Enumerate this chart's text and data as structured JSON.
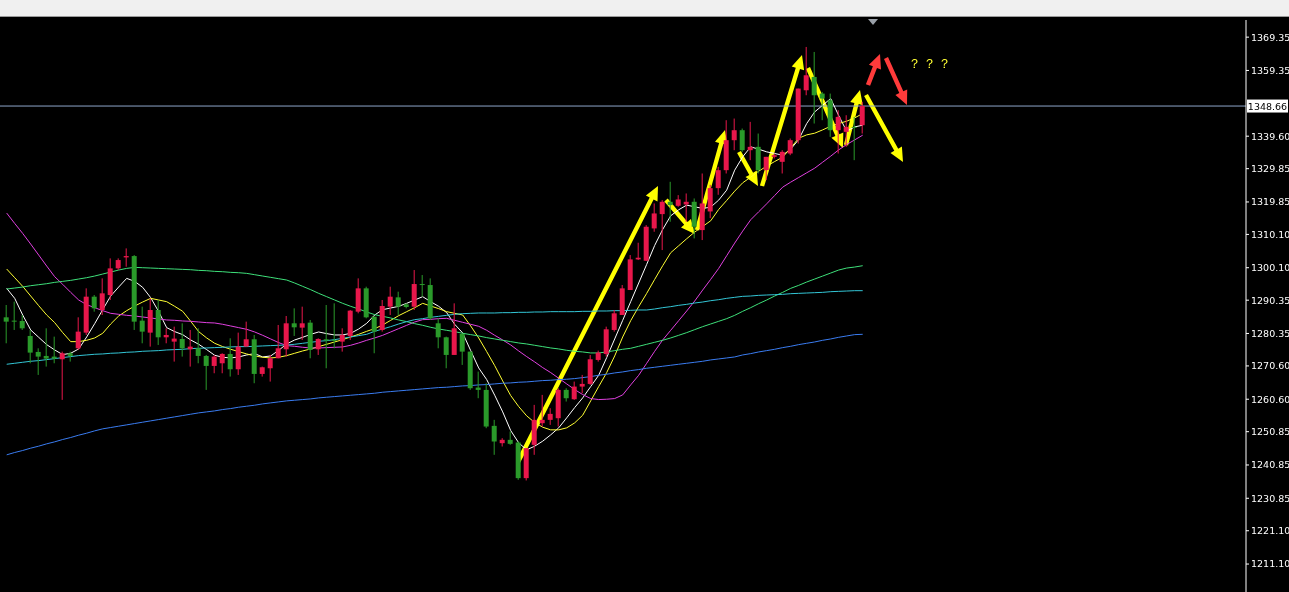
{
  "chart_data": {
    "type": "candlestick",
    "categories": [
      null,
      null,
      null,
      null,
      null,
      null,
      null,
      null,
      null,
      null,
      null,
      null,
      null,
      null,
      null,
      null,
      null,
      null,
      null,
      null,
      null,
      null,
      null,
      null,
      null,
      null,
      null,
      null,
      null,
      null,
      null,
      null,
      null,
      null,
      null,
      null,
      null,
      null,
      null,
      null,
      null,
      null,
      null,
      null,
      null,
      null,
      null,
      null,
      null,
      null,
      null,
      null,
      null,
      null,
      null,
      null,
      null,
      null,
      null,
      null,
      null,
      null,
      null,
      null,
      null,
      null,
      null,
      null,
      null,
      null,
      null,
      null,
      null,
      null,
      null,
      null,
      null,
      null,
      null,
      null,
      null,
      null,
      null,
      null,
      null,
      null,
      null,
      null,
      null,
      null,
      null,
      null,
      null,
      null,
      null,
      null,
      null,
      null,
      null,
      null,
      null,
      null,
      null,
      null,
      null,
      null,
      null,
      null
    ],
    "ohlc": [
      [
        1285.2,
        1288.9,
        1277.4,
        1283.9
      ],
      [
        1284.2,
        1289.9,
        1281.4,
        1284.0
      ],
      [
        1284.1,
        1285.9,
        1281.4,
        1281.9
      ],
      [
        1279.6,
        1281.4,
        1271.4,
        1274.6
      ],
      [
        1274.8,
        1275.9,
        1267.9,
        1273.4
      ],
      [
        1273.6,
        1281.9,
        1270.4,
        1272.8
      ],
      [
        1273.4,
        1279.4,
        1271.4,
        1272.8
      ],
      [
        1272.6,
        1274.9,
        1260.4,
        1274.4
      ],
      [
        1274.4,
        1274.9,
        1271.9,
        1273.6
      ],
      [
        1275.9,
        1285.2,
        1275.4,
        1280.9
      ],
      [
        1280.6,
        1293.9,
        1279.9,
        1291.4
      ],
      [
        1291.4,
        1291.9,
        1286.9,
        1287.9
      ],
      [
        1287.4,
        1296.9,
        1285.9,
        1292.4
      ],
      [
        1291.9,
        1302.9,
        1290.4,
        1299.9
      ],
      [
        1299.9,
        1302.9,
        1299.4,
        1302.4
      ],
      [
        1303.2,
        1305.9,
        1300.4,
        1303.6
      ],
      [
        1303.6,
        1303.9,
        1281.4,
        1283.9
      ],
      [
        1284.2,
        1288.4,
        1277.4,
        1280.9
      ],
      [
        1280.6,
        1290.9,
        1276.4,
        1287.4
      ],
      [
        1287.4,
        1290.4,
        1276.9,
        1279.2
      ],
      [
        1279.2,
        1281.9,
        1277.4,
        1279.9
      ],
      [
        1277.9,
        1282.4,
        1271.9,
        1278.8
      ],
      [
        1278.7,
        1283.4,
        1273.4,
        1275.9
      ],
      [
        1275.6,
        1281.4,
        1270.4,
        1276.4
      ],
      [
        1275.9,
        1281.9,
        1271.4,
        1273.6
      ],
      [
        1273.6,
        1273.9,
        1263.4,
        1270.6
      ],
      [
        1270.6,
        1273.9,
        1268.4,
        1273.4
      ],
      [
        1271.4,
        1274.4,
        1268.4,
        1274.2
      ],
      [
        1274.2,
        1278.9,
        1267.4,
        1269.6
      ],
      [
        1269.6,
        1280.6,
        1267.9,
        1276.4
      ],
      [
        1276.4,
        1283.9,
        1276.4,
        1278.6
      ],
      [
        1278.6,
        1279.9,
        1265.4,
        1268.2
      ],
      [
        1268.2,
        1270.4,
        1267.4,
        1270.2
      ],
      [
        1269.9,
        1273.9,
        1265.9,
        1272.9
      ],
      [
        1272.9,
        1282.9,
        1272.9,
        1275.9
      ],
      [
        1275.6,
        1285.6,
        1273.4,
        1283.4
      ],
      [
        1283.4,
        1287.9,
        1279.6,
        1282.2
      ],
      [
        1282.1,
        1288.4,
        1278.4,
        1283.4
      ],
      [
        1283.6,
        1284.4,
        1272.9,
        1275.4
      ],
      [
        1275.6,
        1278.9,
        1273.9,
        1278.7
      ],
      [
        1278.6,
        1288.9,
        1269.9,
        1278.2
      ],
      [
        1278.4,
        1289.4,
        1275.9,
        1278.1
      ],
      [
        1277.9,
        1281.9,
        1274.9,
        1279.9
      ],
      [
        1279.6,
        1287.4,
        1278.4,
        1287.2
      ],
      [
        1286.9,
        1296.9,
        1286.4,
        1293.9
      ],
      [
        1293.9,
        1294.4,
        1284.9,
        1285.2
      ],
      [
        1285.4,
        1285.4,
        1274.4,
        1280.9
      ],
      [
        1281.4,
        1290.4,
        1280.9,
        1288.6
      ],
      [
        1288.4,
        1294.4,
        1285.9,
        1291.4
      ],
      [
        1291.2,
        1292.9,
        1285.9,
        1288.4
      ],
      [
        1289.1,
        1289.4,
        1287.9,
        1288.3
      ],
      [
        1288.4,
        1299.4,
        1287.4,
        1295.2
      ],
      [
        1295.2,
        1297.9,
        1291.4,
        1294.9
      ],
      [
        1294.9,
        1296.9,
        1284.4,
        1284.9
      ],
      [
        1283.4,
        1284.9,
        1275.9,
        1279.2
      ],
      [
        1279.2,
        1279.4,
        1269.9,
        1273.9
      ],
      [
        1273.9,
        1289.4,
        1273.9,
        1281.9
      ],
      [
        1280.2,
        1280.4,
        1270.9,
        1274.9
      ],
      [
        1274.9,
        1274.9,
        1263.4,
        1263.9
      ],
      [
        1264.1,
        1268.9,
        1260.9,
        1263.4
      ],
      [
        1263.4,
        1265.4,
        1251.9,
        1252.4
      ],
      [
        1252.6,
        1254.4,
        1243.9,
        1247.9
      ],
      [
        1247.4,
        1248.9,
        1246.4,
        1248.4
      ],
      [
        1248.4,
        1250.9,
        1246.9,
        1247.2
      ],
      [
        1247.6,
        1247.9,
        1236.4,
        1236.9
      ],
      [
        1236.9,
        1245.9,
        1236.2,
        1245.9
      ],
      [
        1246.9,
        1258.9,
        1243.9,
        1254.4
      ],
      [
        1253.4,
        1261.9,
        1252.4,
        1254.4
      ],
      [
        1254.4,
        1257.9,
        1252.9,
        1256.2
      ],
      [
        1254.9,
        1263.9,
        1252.4,
        1263.4
      ],
      [
        1263.4,
        1263.9,
        1259.9,
        1260.9
      ],
      [
        1260.6,
        1265.9,
        1260.4,
        1264.4
      ],
      [
        1264.4,
        1267.9,
        1262.4,
        1265.2
      ],
      [
        1265.2,
        1273.9,
        1264.9,
        1272.6
      ],
      [
        1272.4,
        1275.2,
        1271.9,
        1274.6
      ],
      [
        1274.2,
        1282.4,
        1273.4,
        1281.6
      ],
      [
        1281.4,
        1287.4,
        1280.9,
        1286.4
      ],
      [
        1285.9,
        1294.9,
        1285.9,
        1293.9
      ],
      [
        1293.4,
        1303.9,
        1293.4,
        1302.6
      ],
      [
        1302.6,
        1307.6,
        1302.4,
        1303.1
      ],
      [
        1302.2,
        1312.9,
        1302.1,
        1312.4
      ],
      [
        1311.9,
        1319.4,
        1310.9,
        1316.4
      ],
      [
        1316.2,
        1320.4,
        1305.4,
        1319.9
      ],
      [
        1319.9,
        1325.9,
        1313.9,
        1318.9
      ],
      [
        1318.7,
        1321.9,
        1318.4,
        1320.6
      ],
      [
        1319.1,
        1322.4,
        1313.9,
        1319.9
      ],
      [
        1319.9,
        1320.9,
        1308.9,
        1312.4
      ],
      [
        1311.4,
        1328.4,
        1308.4,
        1319.4
      ],
      [
        1317.0,
        1325.0,
        1315.0,
        1324.0
      ],
      [
        1324.0,
        1330.4,
        1322.0,
        1329.4
      ],
      [
        1329.4,
        1344.4,
        1328.4,
        1338.4
      ],
      [
        1338.4,
        1344.9,
        1335.4,
        1341.4
      ],
      [
        1341.4,
        1341.9,
        1334.9,
        1335.4
      ],
      [
        1335.4,
        1343.9,
        1332.4,
        1336.4
      ],
      [
        1336.4,
        1340.4,
        1328.4,
        1329.4
      ],
      [
        1329.4,
        1333.4,
        1326.4,
        1333.4
      ],
      [
        1333.4,
        1334.4,
        1332.9,
        1333.9
      ],
      [
        1331.9,
        1335.4,
        1328.4,
        1334.9
      ],
      [
        1334.4,
        1338.9,
        1333.9,
        1338.4
      ],
      [
        1338.4,
        1353.9,
        1337.4,
        1353.9
      ],
      [
        1353.4,
        1366.4,
        1351.9,
        1357.9
      ],
      [
        1357.4,
        1364.9,
        1343.4,
        1351.9
      ],
      [
        1352.4,
        1352.9,
        1344.4,
        1350.9
      ],
      [
        1350.4,
        1352.4,
        1339.4,
        1341.4
      ],
      [
        1341.4,
        1347.4,
        1334.4,
        1345.4
      ],
      [
        1340.9,
        1345.9,
        1336.4,
        1342.4
      ],
      [
        1342.4,
        1345.4,
        1332.4,
        1342.2
      ],
      [
        1342.9,
        1349.9,
        1340.4,
        1348.66
      ]
    ],
    "colors": [
      "#2a9a2a",
      "#2a9a2a",
      "#2a9a2a",
      "#2a9a2a",
      "#2a9a2a",
      "#2a9a2a",
      "#2a9a2a",
      "#e8174b",
      "#2a9a2a",
      "#e8174b",
      "#e8174b",
      "#2a9a2a",
      "#e8174b",
      "#e8174b",
      "#e8174b",
      "#e8174b",
      "#2a9a2a",
      "#2a9a2a",
      "#e8174b",
      "#2a9a2a",
      "#e8174b",
      "#e8174b",
      "#2a9a2a",
      "#e8174b",
      "#2a9a2a",
      "#2a9a2a",
      "#e8174b",
      "#e8174b",
      "#2a9a2a",
      "#e8174b",
      "#e8174b",
      "#2a9a2a",
      "#e8174b",
      "#e8174b",
      "#e8174b",
      "#e8174b",
      "#2a9a2a",
      "#e8174b",
      "#2a9a2a",
      "#e8174b",
      "#2a9a2a",
      "#2a9a2a",
      "#e8174b",
      "#e8174b",
      "#e8174b",
      "#2a9a2a",
      "#2a9a2a",
      "#e8174b",
      "#e8174b",
      "#2a9a2a",
      "#2a9a2a",
      "#e8174b",
      "#2a9a2a",
      "#2a9a2a",
      "#2a9a2a",
      "#2a9a2a",
      "#e8174b",
      "#2a9a2a",
      "#2a9a2a",
      "#2a9a2a",
      "#2a9a2a",
      "#2a9a2a",
      "#e8174b",
      "#2a9a2a",
      "#2a9a2a",
      "#e8174b",
      "#e8174b",
      "#e8174b",
      "#e8174b",
      "#e8174b",
      "#2a9a2a",
      "#e8174b",
      "#e8174b",
      "#e8174b",
      "#e8174b",
      "#e8174b",
      "#e8174b",
      "#e8174b",
      "#e8174b",
      "#e8174b",
      "#e8174b",
      "#e8174b",
      "#e8174b",
      "#2a9a2a",
      "#e8174b",
      "#e8174b",
      "#2a9a2a",
      "#e8174b",
      "#e8174b",
      "#e8174b",
      "#e8174b",
      "#e8174b",
      "#2a9a2a",
      "#e8174b",
      "#2a9a2a",
      "#e8174b",
      "#e8174b",
      "#e8174b",
      "#e8174b",
      "#e8174b",
      "#e8174b",
      "#2a9a2a",
      "#2a9a2a",
      "#2a9a2a",
      "#e8174b",
      "#e8174b",
      "#2a9a2a",
      "#e8174b"
    ],
    "series": [
      {
        "type": "line",
        "color": "#ffffff",
        "values": [
          1293.9,
          1290.9,
          1285.9,
          1281.4,
          1279.2,
          1277,
          1275.4,
          1274,
          1274.4,
          1275.7,
          1279.3,
          1283.3,
          1287.5,
          1291.6,
          1294.3,
          1296.9,
          1296,
          1294.2,
          1291.1,
          1286.9,
          1282.1,
          1280.9,
          1280,
          1278.4,
          1277.1,
          1275.5,
          1273.8,
          1273.2,
          1273,
          1273.3,
          1273.9,
          1274.3,
          1273.3,
          1273.6,
          1275.3,
          1277.2,
          1278.4,
          1279.2,
          1280.1,
          1280.8,
          1280.3,
          1279.9,
          1279.9,
          1280.4,
          1281.7,
          1283.4,
          1285.9,
          1287.5,
          1288,
          1288.5,
          1289.4,
          1290.4,
          1291.4,
          1289.9,
          1288.5,
          1286.6,
          1283.1,
          1280.5,
          1275.2,
          1270,
          1266.5,
          1261.8,
          1256.8,
          1251.2,
          1247.5,
          1245.4,
          1246.5,
          1248,
          1249.9,
          1252,
          1255,
          1258.1,
          1261,
          1264.4,
          1267.8,
          1273.1,
          1278.7,
          1284.3,
          1289.9,
          1295.5,
          1301.1,
          1306.8,
          1311.6,
          1315.7,
          1317.5,
          1318.9,
          1318.4,
          1317.9,
          1318.3,
          1320.4,
          1323.4,
          1329.4,
          1333.4,
          1336.4,
          1335.7,
          1334.9,
          1334.4,
          1333.9,
          1335.7,
          1338.6,
          1343.4,
          1346.9,
          1348.9,
          1350.9,
          1345.8,
          1341.1,
          1342.4,
          1342.9
        ]
      },
      {
        "type": "line",
        "color": "#ffff33",
        "values": [
          1299.7,
          1297.1,
          1294.5,
          1291.6,
          1288.7,
          1285.9,
          1283.6,
          1280.6,
          1277.9,
          1277.9,
          1278.3,
          1279,
          1280.4,
          1283.2,
          1285.6,
          1287.2,
          1288.6,
          1289.8,
          1290.9,
          1290.4,
          1289.9,
          1288.5,
          1287,
          1284,
          1280.9,
          1279,
          1277.4,
          1276.4,
          1275.6,
          1274.9,
          1274.2,
          1273.6,
          1273.2,
          1273,
          1273.2,
          1273.7,
          1274.4,
          1275.1,
          1275.7,
          1276.4,
          1277.1,
          1277.8,
          1278.5,
          1279.3,
          1280.1,
          1281,
          1281.8,
          1282.9,
          1284.3,
          1285.7,
          1286.9,
          1288.1,
          1289.4,
          1288.6,
          1287.8,
          1286.9,
          1286.4,
          1285.9,
          1282.6,
          1279,
          1274.9,
          1270.7,
          1266.1,
          1261.7,
          1258.4,
          1255.6,
          1253.6,
          1252.2,
          1251.4,
          1251.4,
          1252,
          1253.5,
          1255.8,
          1260.1,
          1264.4,
          1268.6,
          1273.6,
          1279.3,
          1284.2,
          1288.4,
          1292.4,
          1296.6,
          1300.7,
          1304.6,
          1306.7,
          1308.8,
          1310.8,
          1312.5,
          1314.2,
          1317.6,
          1320.3,
          1323.1,
          1325.6,
          1327.3,
          1329.1,
          1330.6,
          1332,
          1333.3,
          1336.1,
          1339,
          1340,
          1340.5,
          1341.5,
          1342.6,
          1343.4,
          1344.1,
          1345.1,
          1346.4
        ]
      },
      {
        "type": "line",
        "color": "#e040e0",
        "values": [
          1316.5,
          1313.4,
          1310.4,
          1307.2,
          1303.9,
          1300.6,
          1297.4,
          1295.1,
          1292.7,
          1290.4,
          1289,
          1288.1,
          1287.2,
          1286.4,
          1286.1,
          1285.8,
          1285.6,
          1285.3,
          1285,
          1284.7,
          1284.4,
          1284.3,
          1284.1,
          1284,
          1283.8,
          1283.6,
          1283.5,
          1283.1,
          1282.6,
          1282.1,
          1281.6,
          1280.8,
          1279.8,
          1278.7,
          1277.6,
          1276.7,
          1276.5,
          1276.2,
          1276,
          1276,
          1276.1,
          1276.2,
          1276.3,
          1276.8,
          1277.5,
          1278.3,
          1279,
          1279.8,
          1280.8,
          1281.8,
          1282.8,
          1283.8,
          1284.5,
          1284.6,
          1284.8,
          1284.9,
          1284.3,
          1283.7,
          1283.1,
          1282.5,
          1281.3,
          1279.8,
          1278.4,
          1276.9,
          1275.1,
          1273.4,
          1271.8,
          1270.1,
          1268.6,
          1266.9,
          1265.2,
          1263.5,
          1262,
          1260.8,
          1260.5,
          1260.6,
          1260.8,
          1261.9,
          1264.9,
          1267.8,
          1271.4,
          1275,
          1278.4,
          1281.3,
          1284.2,
          1287.1,
          1290.1,
          1293.4,
          1296.6,
          1299.9,
          1303.7,
          1307.5,
          1311.1,
          1314.5,
          1316.9,
          1319.3,
          1321.8,
          1324.3,
          1325.8,
          1327.2,
          1328.6,
          1330,
          1331.8,
          1333.6,
          1335.5,
          1337.1,
          1338.5,
          1339.9
        ]
      },
      {
        "type": "line",
        "color": "#3ee07a",
        "values": [
          1293.7,
          1294,
          1294.3,
          1294.7,
          1295,
          1295.3,
          1295.7,
          1296,
          1296.3,
          1296.7,
          1297.1,
          1297.6,
          1298.2,
          1298.8,
          1299.4,
          1299.9,
          1300.2,
          1300.1,
          1300,
          1299.9,
          1299.8,
          1299.7,
          1299.6,
          1299.5,
          1299.3,
          1299.2,
          1299,
          1298.9,
          1298.7,
          1298.6,
          1298.4,
          1298,
          1297.6,
          1297.2,
          1296.8,
          1296.4,
          1295.5,
          1294.5,
          1293.5,
          1292.4,
          1291.4,
          1290.4,
          1289.4,
          1288.5,
          1287.7,
          1286.8,
          1286,
          1285.5,
          1285,
          1284.4,
          1283.9,
          1283.3,
          1282.8,
          1282.2,
          1281.7,
          1281.3,
          1280.9,
          1280.4,
          1280,
          1279.6,
          1279.1,
          1278.7,
          1278.3,
          1277.9,
          1277.5,
          1277.2,
          1276.8,
          1276.4,
          1276,
          1275.7,
          1275.3,
          1275,
          1274.8,
          1274.5,
          1274.5,
          1274.8,
          1275.2,
          1275.6,
          1275.9,
          1276.5,
          1277.1,
          1277.7,
          1278.3,
          1279,
          1279.8,
          1280.6,
          1281.5,
          1282.4,
          1283.2,
          1284,
          1284.8,
          1285.8,
          1287,
          1288.1,
          1289.3,
          1290.4,
          1291.6,
          1292.7,
          1293.9,
          1294.8,
          1295.8,
          1296.7,
          1297.6,
          1298.5,
          1299.4,
          1300,
          1300.3,
          1300.7
        ]
      },
      {
        "type": "line",
        "color": "#33c6d6",
        "values": [
          1271.1,
          1271.4,
          1271.7,
          1272,
          1272.2,
          1272.5,
          1272.8,
          1273.1,
          1273.4,
          1273.7,
          1273.9,
          1274.1,
          1274.2,
          1274.4,
          1274.5,
          1274.7,
          1274.8,
          1275,
          1275.1,
          1275.2,
          1275.4,
          1275.5,
          1275.6,
          1275.8,
          1275.9,
          1276,
          1276.1,
          1276.2,
          1276.3,
          1276.4,
          1276.4,
          1276.5,
          1276.6,
          1276.7,
          1276.8,
          1276.9,
          1277.1,
          1277.4,
          1277.7,
          1278,
          1278.2,
          1278.5,
          1278.9,
          1279.3,
          1279.7,
          1280.1,
          1281,
          1281.7,
          1282.4,
          1283.2,
          1283.9,
          1284.5,
          1284.8,
          1285.2,
          1285.5,
          1285.8,
          1286.1,
          1286.3,
          1286.4,
          1286.5,
          1286.5,
          1286.5,
          1286.6,
          1286.6,
          1286.7,
          1286.7,
          1286.8,
          1286.8,
          1286.9,
          1286.9,
          1286.9,
          1286.9,
          1287,
          1287,
          1287.1,
          1287.1,
          1287.2,
          1287.2,
          1287.3,
          1287.4,
          1287.4,
          1287.7,
          1288.1,
          1288.4,
          1288.8,
          1289.1,
          1289.5,
          1289.8,
          1290.2,
          1290.5,
          1290.9,
          1291.2,
          1291.5,
          1291.6,
          1291.8,
          1291.9,
          1292,
          1292.1,
          1292.3,
          1292.4,
          1292.5,
          1292.6,
          1292.7,
          1292.9,
          1293,
          1293.1,
          1293.2,
          1293.2
        ]
      },
      {
        "type": "line",
        "color": "#3a7cf0",
        "values": [
          1243.9,
          1244.6,
          1245.2,
          1245.9,
          1246.5,
          1247.2,
          1247.8,
          1248.5,
          1249.1,
          1249.8,
          1250.4,
          1251.1,
          1251.7,
          1252.1,
          1252.5,
          1252.9,
          1253.3,
          1253.7,
          1254.1,
          1254.5,
          1254.9,
          1255.3,
          1255.7,
          1256.1,
          1256.5,
          1256.8,
          1257.1,
          1257.5,
          1257.8,
          1258.2,
          1258.5,
          1258.8,
          1259.2,
          1259.5,
          1259.8,
          1260.1,
          1260.3,
          1260.5,
          1260.7,
          1261,
          1261.2,
          1261.4,
          1261.6,
          1261.8,
          1262,
          1262.2,
          1262.4,
          1262.7,
          1262.9,
          1263.1,
          1263.3,
          1263.5,
          1263.7,
          1263.9,
          1264.1,
          1264.2,
          1264.4,
          1264.6,
          1264.7,
          1264.9,
          1265,
          1265.2,
          1265.4,
          1265.5,
          1265.7,
          1265.8,
          1266,
          1266.2,
          1266.3,
          1266.5,
          1266.6,
          1266.8,
          1267.1,
          1267.4,
          1267.8,
          1268.1,
          1268.5,
          1268.8,
          1269.2,
          1269.5,
          1269.9,
          1270.2,
          1270.5,
          1270.8,
          1271.1,
          1271.4,
          1271.7,
          1272,
          1272.4,
          1272.7,
          1273,
          1273.3,
          1273.9,
          1274.3,
          1274.8,
          1275.2,
          1275.6,
          1276.1,
          1276.5,
          1277,
          1277.4,
          1277.8,
          1278.3,
          1278.7,
          1279.2,
          1279.6,
          1280,
          1280.1
        ]
      }
    ],
    "ylim": [
      1202.7,
      1374.5
    ],
    "yticks": [
      1369.35,
      1359.35,
      {
        "value": 1339.6,
        "label": "1339.60"
      },
      1329.85,
      1319.85,
      {
        "value": 1310.1,
        "label": "1310.10"
      },
      {
        "value": 1300.1,
        "label": "1300.10"
      },
      1290.35,
      1280.35,
      {
        "value": 1270.6,
        "label": "1270.60"
      },
      {
        "value": 1260.6,
        "label": "1260.60"
      },
      1250.85,
      1240.85,
      1230.85,
      {
        "value": 1221.1,
        "label": "1221.10"
      },
      {
        "value": 1211.1,
        "label": "1211.10"
      }
    ],
    "ref_lines": [
      {
        "axis": "y",
        "value": 1348.66,
        "label": "1348.66",
        "color": "#8ea6c9"
      }
    ],
    "annotations": [
      "？？？"
    ],
    "tick_labels": "y"
  }
}
